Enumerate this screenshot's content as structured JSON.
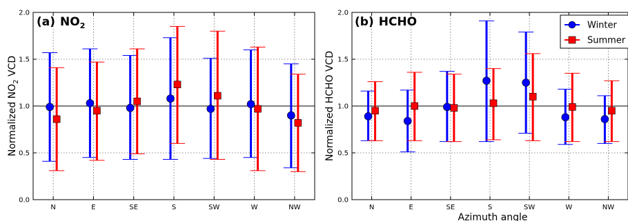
{
  "figure": {
    "xlabel": "Azimuth angle"
  },
  "chart_data": [
    {
      "type": "scatter",
      "panel_label": "(a)",
      "title_main": "NO",
      "title_sub": "2",
      "ylabel_main": "Normalized NO",
      "ylabel_sub": "2",
      "ylabel_tail": " VCD",
      "categories": [
        "N",
        "E",
        "SE",
        "S",
        "SW",
        "W",
        "NW"
      ],
      "ylim": [
        0.0,
        2.0
      ],
      "yticks": [
        "0.0",
        "0.5",
        "1.0",
        "1.5",
        "2.0"
      ],
      "reference_line": 1.0,
      "grid": true,
      "series": [
        {
          "name": "Winter",
          "marker": "circle",
          "color": "#0000ff",
          "values": [
            0.99,
            1.03,
            0.98,
            1.08,
            0.97,
            1.02,
            0.9
          ],
          "err_low": [
            0.41,
            0.45,
            0.43,
            0.43,
            0.44,
            0.45,
            0.34
          ],
          "err_high": [
            1.57,
            1.61,
            1.54,
            1.73,
            1.51,
            1.6,
            1.45
          ]
        },
        {
          "name": "Summer",
          "marker": "square",
          "color": "#ff0000",
          "values": [
            0.86,
            0.95,
            1.05,
            1.23,
            1.11,
            0.97,
            0.82
          ],
          "err_low": [
            0.31,
            0.42,
            0.49,
            0.6,
            0.43,
            0.31,
            0.3
          ],
          "err_high": [
            1.41,
            1.47,
            1.61,
            1.85,
            1.8,
            1.63,
            1.34
          ]
        }
      ]
    },
    {
      "type": "scatter",
      "panel_label": "(b)",
      "title_main": "HCHO",
      "title_sub": "",
      "ylabel_main": "Normalized HCHO VCD",
      "ylabel_sub": "",
      "ylabel_tail": "",
      "categories": [
        "N",
        "E",
        "SE",
        "S",
        "SW",
        "W",
        "NW"
      ],
      "ylim": [
        0.0,
        2.0
      ],
      "yticks": [
        "0.0",
        "0.5",
        "1.0",
        "1.5",
        "2.0"
      ],
      "reference_line": 1.0,
      "grid": true,
      "legend": {
        "placement": "top-right",
        "entries": [
          "Winter",
          "Summer"
        ]
      },
      "series": [
        {
          "name": "Winter",
          "marker": "circle",
          "color": "#0000ff",
          "values": [
            0.89,
            0.84,
            0.99,
            1.27,
            1.25,
            0.88,
            0.86
          ],
          "err_low": [
            0.63,
            0.51,
            0.62,
            0.62,
            0.71,
            0.59,
            0.6
          ],
          "err_high": [
            1.16,
            1.17,
            1.37,
            1.91,
            1.79,
            1.18,
            1.11
          ]
        },
        {
          "name": "Summer",
          "marker": "square",
          "color": "#ff0000",
          "values": [
            0.95,
            1.0,
            0.98,
            1.03,
            1.1,
            0.99,
            0.95
          ],
          "err_low": [
            0.63,
            0.63,
            0.62,
            0.64,
            0.63,
            0.62,
            0.62
          ],
          "err_high": [
            1.26,
            1.36,
            1.34,
            1.4,
            1.56,
            1.35,
            1.27
          ]
        }
      ]
    }
  ]
}
